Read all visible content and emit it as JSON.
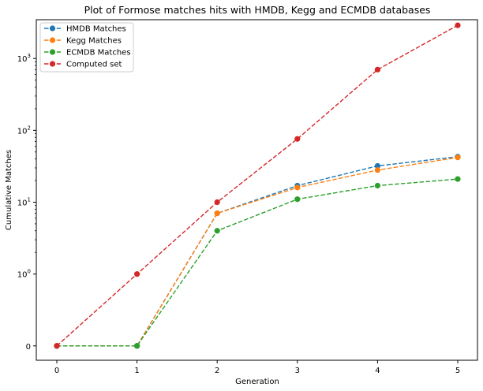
{
  "chart_data": {
    "type": "line",
    "title": "Plot of Formose matches hits with HMDB, Kegg and ECMDB databases",
    "xlabel": "Generation",
    "ylabel": "Cumulative Matches",
    "yscale": "symlog",
    "x": [
      0,
      1,
      2,
      3,
      4,
      5
    ],
    "xticks": [
      "0",
      "1",
      "2",
      "3",
      "4",
      "5"
    ],
    "yticks": [
      {
        "value": 0,
        "base": "0",
        "exp": ""
      },
      {
        "value": 1,
        "base": "10",
        "exp": "0"
      },
      {
        "value": 10,
        "base": "10",
        "exp": "1"
      },
      {
        "value": 100,
        "base": "10",
        "exp": "2"
      },
      {
        "value": 1000,
        "base": "10",
        "exp": "3"
      }
    ],
    "legend_position": "top-left",
    "grid": false,
    "series": [
      {
        "name": "HMDB Matches",
        "color": "#1f77b4",
        "values": [
          0,
          0,
          7,
          17,
          32,
          43
        ]
      },
      {
        "name": "Kegg Matches",
        "color": "#ff7f0e",
        "values": [
          0,
          0,
          7,
          16,
          28,
          42
        ]
      },
      {
        "name": "ECMDB Matches",
        "color": "#2ca02c",
        "values": [
          0,
          0,
          4,
          11,
          17,
          21
        ]
      },
      {
        "name": "Computed set",
        "color": "#d62728",
        "values": [
          0,
          1,
          10,
          76,
          700,
          2900
        ]
      }
    ]
  }
}
